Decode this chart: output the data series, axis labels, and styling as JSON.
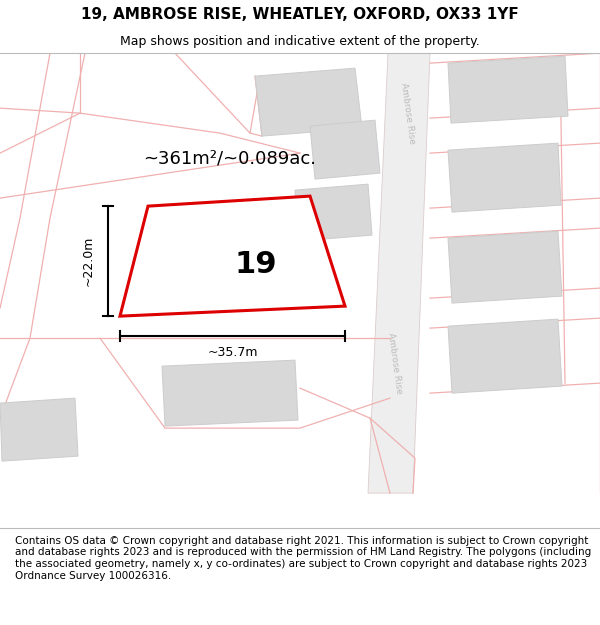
{
  "title": "19, AMBROSE RISE, WHEATLEY, OXFORD, OX33 1YF",
  "subtitle": "Map shows position and indicative extent of the property.",
  "footer": "Contains OS data © Crown copyright and database right 2021. This information is subject to Crown copyright and database rights 2023 and is reproduced with the permission of HM Land Registry. The polygons (including the associated geometry, namely x, y co-ordinates) are subject to Crown copyright and database rights 2023 Ordnance Survey 100026316.",
  "area_label": "~361m²/~0.089ac.",
  "width_label": "~35.7m",
  "height_label": "~22.0m",
  "property_number": "19",
  "map_bg": "#ffffff",
  "plot_border_color": "#dd0000",
  "building_fill": "#d8d8d8",
  "building_edge": "#cccccc",
  "pink_line": "#f0b0b0",
  "road_fill": "#eeeeee",
  "road_edge": "#ddcccc",
  "road_label_color": "#aaaaaa",
  "title_fontsize": 11,
  "subtitle_fontsize": 9,
  "footer_fontsize": 7.5,
  "prop_label_fontsize": 22,
  "area_label_fontsize": 13
}
